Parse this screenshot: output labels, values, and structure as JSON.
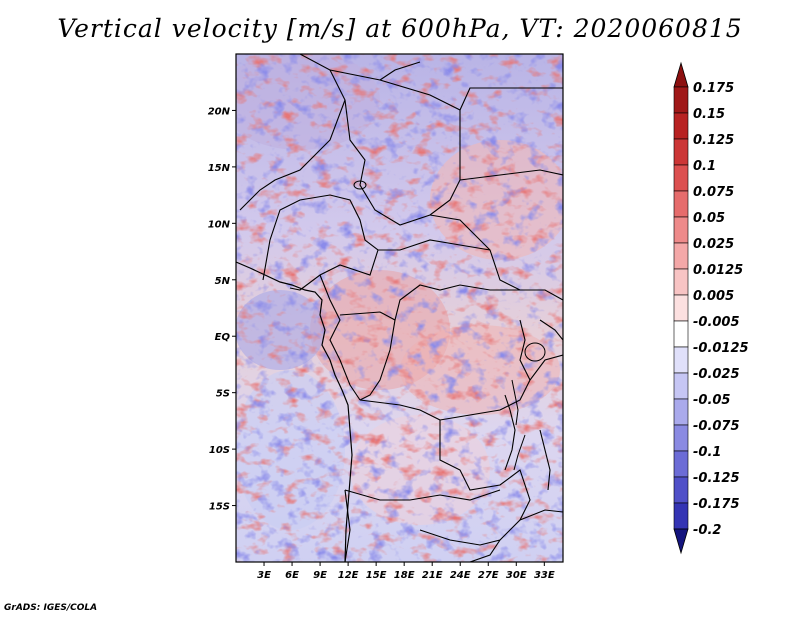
{
  "title": "Vertical velocity [m/s] at 600hPa, VT: 2020060815",
  "credit": "GrADS: IGES/COLA",
  "map": {
    "lon_range": [
      0,
      35
    ],
    "lat_range": [
      -20,
      25
    ],
    "lon_ticks": [
      {
        "value": 3,
        "label": "3E"
      },
      {
        "value": 6,
        "label": "6E"
      },
      {
        "value": 9,
        "label": "9E"
      },
      {
        "value": 12,
        "label": "12E"
      },
      {
        "value": 15,
        "label": "15E"
      },
      {
        "value": 18,
        "label": "18E"
      },
      {
        "value": 21,
        "label": "21E"
      },
      {
        "value": 24,
        "label": "24E"
      },
      {
        "value": 27,
        "label": "27E"
      },
      {
        "value": 30,
        "label": "30E"
      },
      {
        "value": 33,
        "label": "33E"
      }
    ],
    "lat_ticks": [
      {
        "value": 20,
        "label": "20N"
      },
      {
        "value": 15,
        "label": "15N"
      },
      {
        "value": 10,
        "label": "10N"
      },
      {
        "value": 5,
        "label": "5N"
      },
      {
        "value": 0,
        "label": "EQ"
      },
      {
        "value": -5,
        "label": "5S"
      },
      {
        "value": -10,
        "label": "10S"
      },
      {
        "value": -15,
        "label": "15S"
      }
    ]
  },
  "colorbar": {
    "levels": [
      {
        "label": "0.175",
        "color": "#a01818"
      },
      {
        "label": "0.15",
        "color": "#b82222"
      },
      {
        "label": "0.125",
        "color": "#cc3636"
      },
      {
        "label": "0.1",
        "color": "#dc5050"
      },
      {
        "label": "0.075",
        "color": "#e66c6c"
      },
      {
        "label": "0.05",
        "color": "#ee8a8a"
      },
      {
        "label": "0.025",
        "color": "#f4a8a8"
      },
      {
        "label": "0.0125",
        "color": "#f8c4c4"
      },
      {
        "label": "0.005",
        "color": "#fce0e0"
      },
      {
        "label": "-0.005",
        "color": "#ffffff"
      },
      {
        "label": "-0.0125",
        "color": "#e0e0fa"
      },
      {
        "label": "-0.025",
        "color": "#c6c6f4"
      },
      {
        "label": "-0.05",
        "color": "#aaaaec"
      },
      {
        "label": "-0.075",
        "color": "#8a8ae2"
      },
      {
        "label": "-0.1",
        "color": "#6c6cd6"
      },
      {
        "label": "-0.125",
        "color": "#5050c8"
      },
      {
        "label": "-0.175",
        "color": "#3434b4"
      },
      {
        "label": "-0.2",
        "color": "#20209a"
      }
    ],
    "top_arrow_color": "#8c1010",
    "bottom_arrow_color": "#14147e"
  }
}
